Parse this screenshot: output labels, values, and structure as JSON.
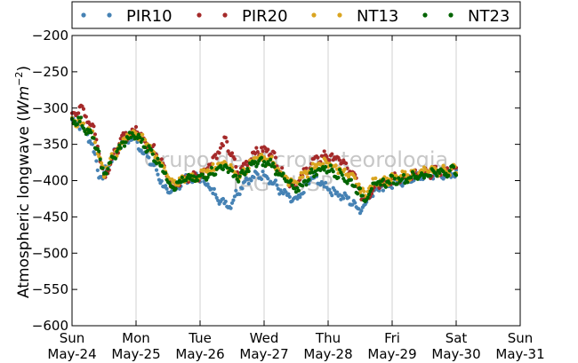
{
  "chart_data": {
    "type": "scatter",
    "ylabel": "Atmospheric longwave (W m^-2)",
    "ylabel_parts": [
      "Atmospheric longwave (",
      "Wm",
      "−2",
      ")"
    ],
    "ylim": [
      -600,
      -200
    ],
    "yticks": [
      -200,
      -250,
      -300,
      -350,
      -400,
      -450,
      -500,
      -550,
      -600
    ],
    "ytick_labels": [
      "−200",
      "−250",
      "−300",
      "−350",
      "−400",
      "−450",
      "−500",
      "−550",
      "−600"
    ],
    "xlim": [
      0,
      7
    ],
    "xticks": [
      {
        "day": "Sun",
        "date": "May-24"
      },
      {
        "day": "Mon",
        "date": "May-25"
      },
      {
        "day": "Tue",
        "date": "May-26"
      },
      {
        "day": "Wed",
        "date": "May-27"
      },
      {
        "day": "Thu",
        "date": "May-28"
      },
      {
        "day": "Fri",
        "date": "May-29"
      },
      {
        "day": "Sat",
        "date": "May-30"
      },
      {
        "day": "Sun",
        "date": "May-31"
      }
    ],
    "grid": "vertical",
    "legend_position": "top",
    "watermark": [
      "Grupo de Micrometeorologia",
      "IAG - USP"
    ],
    "series": [
      {
        "name": "PIR10",
        "color": "#4682b4",
        "profile": [
          [
            0,
            -316
          ],
          [
            0.12,
            -322
          ],
          [
            0.3,
            -345
          ],
          [
            0.45,
            -400
          ],
          [
            0.55,
            -382
          ],
          [
            0.75,
            -350
          ],
          [
            0.95,
            -340
          ],
          [
            1.1,
            -358
          ],
          [
            1.3,
            -383
          ],
          [
            1.5,
            -420
          ],
          [
            1.75,
            -400
          ],
          [
            2.0,
            -395
          ],
          [
            2.3,
            -425
          ],
          [
            2.45,
            -435
          ],
          [
            2.7,
            -400
          ],
          [
            3.0,
            -390
          ],
          [
            3.3,
            -418
          ],
          [
            3.5,
            -430
          ],
          [
            3.75,
            -395
          ],
          [
            4.0,
            -410
          ],
          [
            4.35,
            -428
          ],
          [
            4.5,
            -440
          ],
          [
            4.75,
            -410
          ],
          [
            5.0,
            -405
          ],
          [
            5.5,
            -392
          ],
          [
            6.0,
            -392
          ]
        ]
      },
      {
        "name": "PIR20",
        "color": "#a52a2a",
        "profile": [
          [
            0,
            -308
          ],
          [
            0.15,
            -300
          ],
          [
            0.35,
            -330
          ],
          [
            0.5,
            -395
          ],
          [
            0.6,
            -375
          ],
          [
            0.8,
            -340
          ],
          [
            1.0,
            -330
          ],
          [
            1.15,
            -345
          ],
          [
            1.4,
            -370
          ],
          [
            1.55,
            -410
          ],
          [
            1.8,
            -395
          ],
          [
            2.0,
            -393
          ],
          [
            2.25,
            -365
          ],
          [
            2.4,
            -345
          ],
          [
            2.6,
            -390
          ],
          [
            2.85,
            -360
          ],
          [
            3.1,
            -358
          ],
          [
            3.35,
            -400
          ],
          [
            3.5,
            -405
          ],
          [
            3.75,
            -375
          ],
          [
            3.95,
            -365
          ],
          [
            4.2,
            -372
          ],
          [
            4.45,
            -400
          ],
          [
            4.55,
            -430
          ],
          [
            4.75,
            -405
          ],
          [
            5.0,
            -398
          ],
          [
            5.5,
            -390
          ],
          [
            6.0,
            -385
          ]
        ]
      },
      {
        "name": "NT13",
        "color": "#daa520",
        "profile": [
          [
            0,
            -318
          ],
          [
            0.15,
            -320
          ],
          [
            0.35,
            -340
          ],
          [
            0.5,
            -390
          ],
          [
            0.62,
            -370
          ],
          [
            0.85,
            -338
          ],
          [
            1.0,
            -335
          ],
          [
            1.15,
            -348
          ],
          [
            1.4,
            -376
          ],
          [
            1.55,
            -405
          ],
          [
            1.8,
            -396
          ],
          [
            2.0,
            -394
          ],
          [
            2.25,
            -380
          ],
          [
            2.4,
            -375
          ],
          [
            2.6,
            -395
          ],
          [
            2.85,
            -370
          ],
          [
            3.1,
            -372
          ],
          [
            3.35,
            -398
          ],
          [
            3.5,
            -402
          ],
          [
            3.75,
            -382
          ],
          [
            3.95,
            -375
          ],
          [
            4.2,
            -385
          ],
          [
            4.45,
            -402
          ],
          [
            4.55,
            -420
          ],
          [
            4.75,
            -400
          ],
          [
            5.0,
            -398
          ],
          [
            5.5,
            -388
          ],
          [
            6.0,
            -385
          ]
        ]
      },
      {
        "name": "NT23",
        "color": "#006400",
        "profile": [
          [
            0,
            -315
          ],
          [
            0.15,
            -320
          ],
          [
            0.35,
            -345
          ],
          [
            0.5,
            -392
          ],
          [
            0.62,
            -372
          ],
          [
            0.85,
            -342
          ],
          [
            1.0,
            -338
          ],
          [
            1.15,
            -352
          ],
          [
            1.4,
            -380
          ],
          [
            1.55,
            -408
          ],
          [
            1.8,
            -398
          ],
          [
            2.0,
            -397
          ],
          [
            2.25,
            -385
          ],
          [
            2.4,
            -380
          ],
          [
            2.6,
            -398
          ],
          [
            2.85,
            -375
          ],
          [
            3.1,
            -376
          ],
          [
            3.35,
            -400
          ],
          [
            3.5,
            -415
          ],
          [
            3.75,
            -390
          ],
          [
            3.95,
            -382
          ],
          [
            4.2,
            -392
          ],
          [
            4.45,
            -410
          ],
          [
            4.55,
            -425
          ],
          [
            4.75,
            -405
          ],
          [
            5.0,
            -400
          ],
          [
            5.5,
            -392
          ],
          [
            6.0,
            -385
          ]
        ]
      }
    ]
  }
}
